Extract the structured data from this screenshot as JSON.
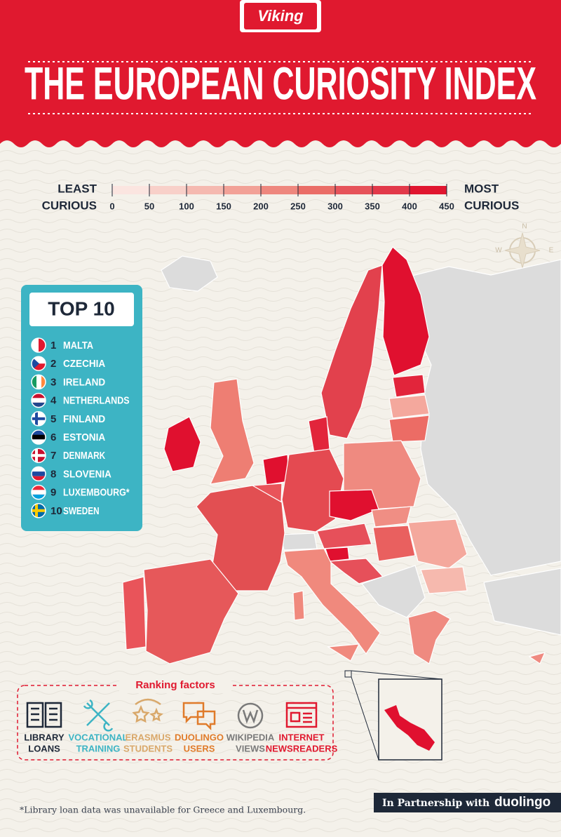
{
  "brand": "Viking",
  "title": "THE EUROPEAN CURIOSITY INDEX",
  "legend": {
    "low_label": [
      "LEAST",
      "CURIOUS"
    ],
    "high_label": [
      "MOST",
      "CURIOUS"
    ],
    "ticks": [
      0,
      50,
      100,
      150,
      200,
      250,
      300,
      350,
      400,
      450
    ]
  },
  "compass": {
    "north": "N",
    "west": "W",
    "east": "E"
  },
  "top10": {
    "heading": "TOP 10",
    "entries": [
      {
        "rank": 1,
        "name": "MALTA"
      },
      {
        "rank": 2,
        "name": "CZECHIA"
      },
      {
        "rank": 3,
        "name": "IRELAND"
      },
      {
        "rank": 4,
        "name": "NETHERLANDS"
      },
      {
        "rank": 5,
        "name": "FINLAND"
      },
      {
        "rank": 6,
        "name": "ESTONIA"
      },
      {
        "rank": 7,
        "name": "DENMARK"
      },
      {
        "rank": 8,
        "name": "SLOVENIA"
      },
      {
        "rank": 9,
        "name": "LUXEMBOURG*"
      },
      {
        "rank": 10,
        "name": "SWEDEN"
      }
    ]
  },
  "ranking_factors": {
    "heading": "Ranking factors",
    "items": [
      {
        "lines": [
          "LIBRARY",
          "LOANS"
        ]
      },
      {
        "lines": [
          "VOCATIONAL",
          "TRAINING"
        ]
      },
      {
        "lines": [
          "ERASMUS",
          "STUDENTS"
        ]
      },
      {
        "lines": [
          "DUOLINGO",
          "USERS"
        ]
      },
      {
        "lines": [
          "WIKIPEDIA",
          "VIEWS"
        ]
      },
      {
        "lines": [
          "INTERNET",
          "NEWSREADERS"
        ]
      }
    ]
  },
  "footnote": "*Library loan data was unavailable for Greece and Luxembourg.",
  "partnership": {
    "text": "In Partnership with",
    "partner": "duolingo"
  }
}
